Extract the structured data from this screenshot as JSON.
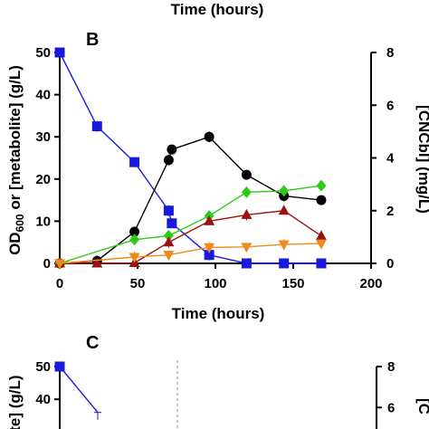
{
  "top_fragment": {
    "xlabel": "Time (hours)"
  },
  "panel_b": {
    "letter": "B",
    "ylabel_left": [
      "OD",
      "600",
      " or [metabolite] (g/L)"
    ],
    "ylabel_right": "[CNCbl] (mg/L)",
    "xlabel": "Time (hours)"
  },
  "panel_c": {
    "letter": "C",
    "ylabel_left": "ite] (g/L)",
    "ylabel_right": "[C"
  },
  "colors": {
    "blue": "#1a1adf",
    "black": "#000000",
    "green": "#2bcc12",
    "darkred": "#9c1212",
    "orange": "#f08a1c",
    "divider": "#888888"
  },
  "chart_data": [
    {
      "panel": "B",
      "type": "line",
      "xlabel": "Time (hours)",
      "ylabel": "OD600 or [metabolite] (g/L)",
      "y2label": "[CNCbl] (mg/L)",
      "xlim": [
        0,
        200
      ],
      "ylim": [
        0,
        50
      ],
      "y2lim": [
        0,
        8
      ],
      "xticks": [
        0,
        50,
        100,
        150,
        200
      ],
      "yticks": [
        0,
        10,
        20,
        30,
        40,
        50
      ],
      "y2ticks": [
        0,
        2,
        4,
        6,
        8
      ],
      "grid": false,
      "legend": "none",
      "series": [
        {
          "color": "#1a1adf",
          "marker": "square",
          "axis": "left",
          "x": [
            0,
            24,
            48,
            70,
            72,
            96,
            120,
            144,
            168
          ],
          "y": [
            50,
            32.5,
            24,
            12.5,
            9.5,
            2,
            0,
            0,
            0
          ]
        },
        {
          "color": "#000000",
          "marker": "circle",
          "axis": "left",
          "x": [
            0,
            24,
            48,
            70,
            72,
            96,
            120,
            144,
            168
          ],
          "y": [
            0,
            0.6,
            7.5,
            24.5,
            27,
            30,
            21,
            16,
            15
          ]
        },
        {
          "color": "#2bcc12",
          "marker": "diamond",
          "axis": "right",
          "x": [
            0,
            48,
            70,
            96,
            120,
            144,
            168
          ],
          "y": [
            0,
            0.9,
            1.05,
            1.8,
            2.7,
            2.75,
            2.95
          ]
        },
        {
          "color": "#9c1212",
          "marker": "triangle-up",
          "axis": "left",
          "x": [
            0,
            24,
            48,
            70,
            96,
            120,
            144,
            168
          ],
          "y": [
            0,
            0,
            0.1,
            5,
            10,
            11.5,
            12.5,
            6.5
          ]
        },
        {
          "color": "#f08a1c",
          "marker": "triangle-down",
          "axis": "left",
          "x": [
            0,
            48,
            70,
            96,
            120,
            144,
            168
          ],
          "y": [
            0,
            1.5,
            2,
            3.8,
            3.9,
            4.5,
            4.7
          ]
        }
      ]
    },
    {
      "panel": "C",
      "type": "line",
      "ylabel": "ite] (g/L)",
      "y2label": "[C",
      "xlim": [
        0,
        200
      ],
      "ylim": [
        0,
        50
      ],
      "y2lim": [
        0,
        8
      ],
      "yticks": [
        40,
        50
      ],
      "y2ticks": [
        6,
        8
      ],
      "series": [
        {
          "color": "#1a1adf",
          "marker": "square",
          "axis": "left",
          "x": [
            0,
            24
          ],
          "y": [
            50,
            36
          ]
        }
      ]
    }
  ]
}
